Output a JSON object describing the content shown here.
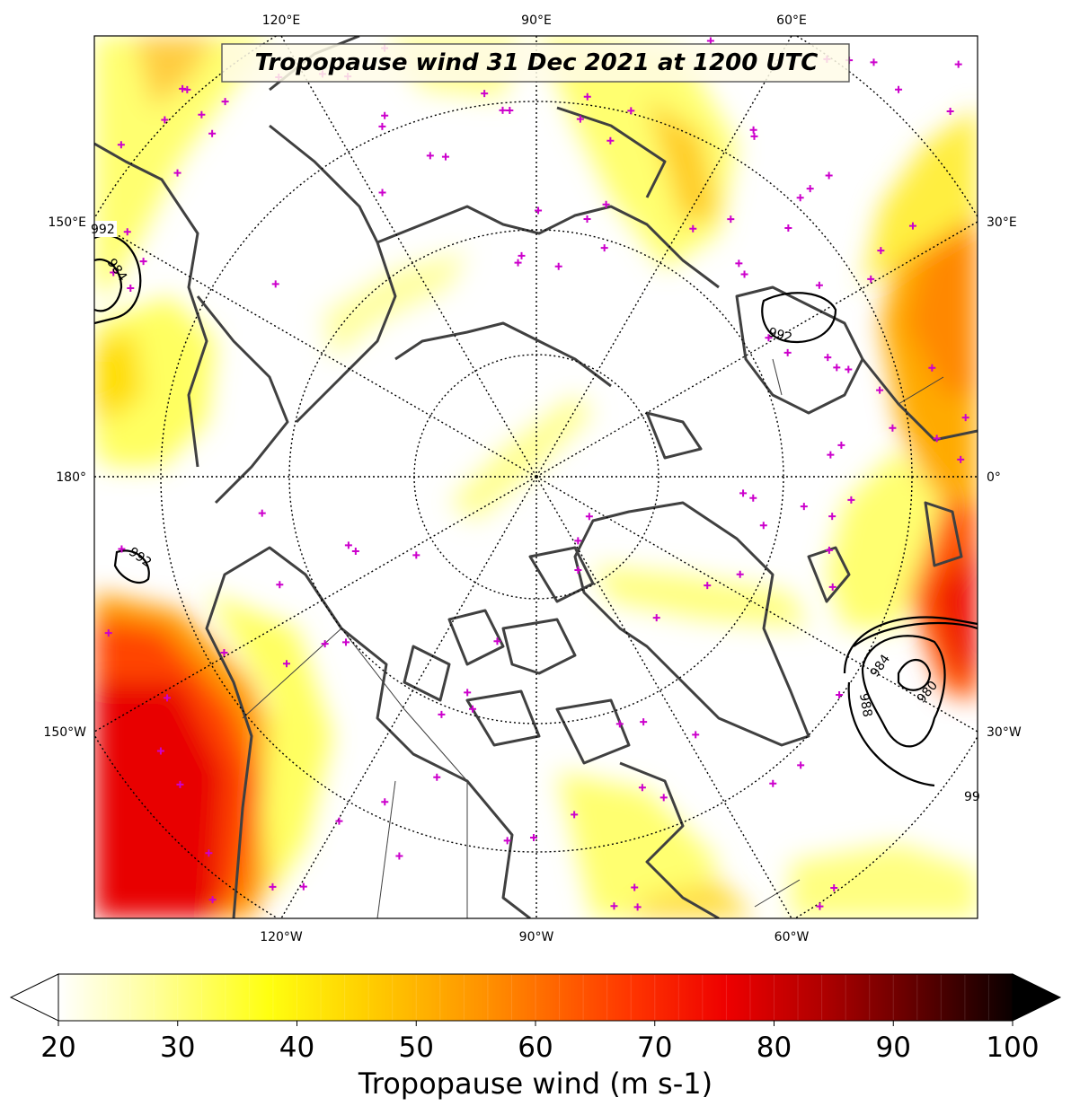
{
  "title": "Tropopause wind 31 Dec 2021 at 1200 UTC",
  "projection": "north-polar-stereographic",
  "longitude_labels": {
    "top": [
      "120°E",
      "90°E",
      "60°E"
    ],
    "bottom": [
      "120°W",
      "90°W",
      "60°W"
    ],
    "left": [
      "150°E",
      "180°",
      "150°W"
    ],
    "right": [
      "30°E",
      "0°",
      "30°W"
    ]
  },
  "colorbar": {
    "label": "Tropopause wind (m s-1)",
    "min": 20,
    "max": 100,
    "ticks": [
      "20",
      "30",
      "40",
      "50",
      "60",
      "70",
      "80",
      "90",
      "100"
    ],
    "colormap": "hot_r",
    "extend": "both",
    "stops": [
      "#ffffff",
      "#ffff80",
      "#ffff00",
      "#ffcc00",
      "#ff9900",
      "#ff5500",
      "#ff0000",
      "#cc0000",
      "#990000",
      "#550000",
      "#000000"
    ]
  },
  "pressure_contours": {
    "units_implied": "hPa",
    "labels": [
      "992",
      "984",
      "992",
      "992",
      "984",
      "980",
      "988",
      "99"
    ]
  },
  "colors": {
    "coastline": "#404040",
    "station_marker": "#cc00cc",
    "grid": "#000000",
    "contour": "#000000"
  }
}
